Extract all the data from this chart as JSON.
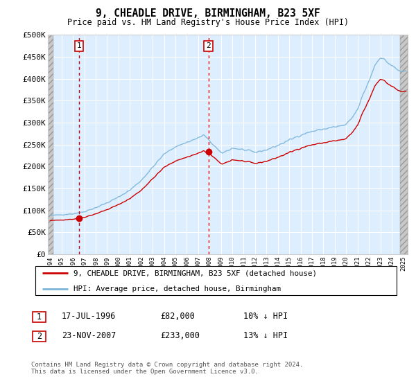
{
  "title": "9, CHEADLE DRIVE, BIRMINGHAM, B23 5XF",
  "subtitle": "Price paid vs. HM Land Registry's House Price Index (HPI)",
  "xmin": 1994.0,
  "xmax": 2025.2,
  "ymin": 0,
  "ymax": 500000,
  "yticks": [
    0,
    50000,
    100000,
    150000,
    200000,
    250000,
    300000,
    350000,
    400000,
    450000,
    500000
  ],
  "ytick_labels": [
    "£0",
    "£50K",
    "£100K",
    "£150K",
    "£200K",
    "£250K",
    "£300K",
    "£350K",
    "£400K",
    "£450K",
    "£500K"
  ],
  "xtick_years": [
    1994,
    1995,
    1996,
    1997,
    1998,
    1999,
    2000,
    2001,
    2002,
    2003,
    2004,
    2005,
    2006,
    2007,
    2008,
    2009,
    2010,
    2011,
    2012,
    2013,
    2014,
    2015,
    2016,
    2017,
    2018,
    2019,
    2020,
    2021,
    2022,
    2023,
    2024,
    2025
  ],
  "sale1_year": 1996.54,
  "sale1_price": 82000,
  "sale2_year": 2007.9,
  "sale2_price": 233000,
  "hpi_color": "#7ab4d8",
  "price_color": "#cc0000",
  "sale_box_color": "#cc0000",
  "bg_plot_color": "#ddeeff",
  "legend_label_price": "9, CHEADLE DRIVE, BIRMINGHAM, B23 5XF (detached house)",
  "legend_label_hpi": "HPI: Average price, detached house, Birmingham",
  "sale1_date": "17-JUL-1996",
  "sale1_amount": "£82,000",
  "sale1_hpi": "10% ↓ HPI",
  "sale2_date": "23-NOV-2007",
  "sale2_amount": "£233,000",
  "sale2_hpi": "13% ↓ HPI",
  "footer": "Contains HM Land Registry data © Crown copyright and database right 2024.\nThis data is licensed under the Open Government Licence v3.0."
}
